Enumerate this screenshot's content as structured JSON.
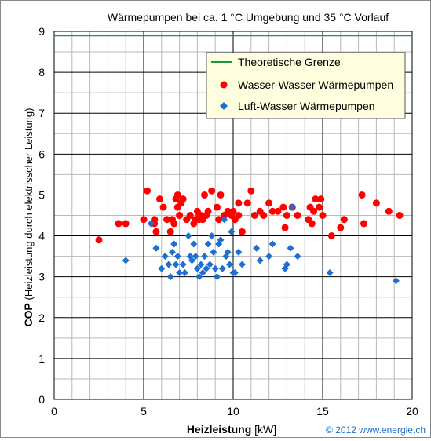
{
  "chart_data": {
    "type": "scatter",
    "title": "Wärmepumpen bei ca. 1 °C Umgebung und 35 °C Vorlauf",
    "xlabel_bold": "Heizleistung",
    "xlabel_unit": " [kW]",
    "ylabel_bold": "COP",
    "ylabel_rest": " (Heizleistung durch elektrisscher Leistung)",
    "xlim": [
      0,
      20
    ],
    "ylim": [
      0,
      9
    ],
    "xticks": [
      "0",
      "5",
      "10",
      "15",
      "20"
    ],
    "yticks": [
      "0",
      "1",
      "2",
      "3",
      "4",
      "5",
      "6",
      "7",
      "8",
      "9"
    ],
    "grid": true,
    "legend_position": "top-right",
    "theoretical_limit": {
      "name": "Theoretische Grenze",
      "y": 8.9,
      "color": "#1a9a3a"
    },
    "series": [
      {
        "name": "Wasser-Wasser Wärmepumpen",
        "color": "#ff0000",
        "marker": "circle",
        "points": [
          [
            2.5,
            3.9
          ],
          [
            3.6,
            4.3
          ],
          [
            4.0,
            4.3
          ],
          [
            5.0,
            4.4
          ],
          [
            5.2,
            5.1
          ],
          [
            5.6,
            4.4
          ],
          [
            5.6,
            4.3
          ],
          [
            5.7,
            4.1
          ],
          [
            5.9,
            4.9
          ],
          [
            6.1,
            4.7
          ],
          [
            6.3,
            4.4
          ],
          [
            6.5,
            4.1
          ],
          [
            6.6,
            4.4
          ],
          [
            6.7,
            4.3
          ],
          [
            6.8,
            4.9
          ],
          [
            6.9,
            4.7
          ],
          [
            6.9,
            5.0
          ],
          [
            7.0,
            4.5
          ],
          [
            7.1,
            4.8
          ],
          [
            7.2,
            4.9
          ],
          [
            7.4,
            4.4
          ],
          [
            7.6,
            4.5
          ],
          [
            7.8,
            4.3
          ],
          [
            7.9,
            4.4
          ],
          [
            8.0,
            4.6
          ],
          [
            8.1,
            4.5
          ],
          [
            8.1,
            4.4
          ],
          [
            8.2,
            4.5
          ],
          [
            8.3,
            4.4
          ],
          [
            8.4,
            5.0
          ],
          [
            8.5,
            4.5
          ],
          [
            8.6,
            4.6
          ],
          [
            8.8,
            5.1
          ],
          [
            9.1,
            4.7
          ],
          [
            9.2,
            4.4
          ],
          [
            9.3,
            5.0
          ],
          [
            9.5,
            4.5
          ],
          [
            9.7,
            4.6
          ],
          [
            9.9,
            4.5
          ],
          [
            10.0,
            4.6
          ],
          [
            10.1,
            4.4
          ],
          [
            10.3,
            4.8
          ],
          [
            10.3,
            4.5
          ],
          [
            10.5,
            4.1
          ],
          [
            10.8,
            4.8
          ],
          [
            11.0,
            5.1
          ],
          [
            11.2,
            4.5
          ],
          [
            11.5,
            4.6
          ],
          [
            11.7,
            4.5
          ],
          [
            12.0,
            4.8
          ],
          [
            12.2,
            4.6
          ],
          [
            12.5,
            4.6
          ],
          [
            12.8,
            4.7
          ],
          [
            12.9,
            4.2
          ],
          [
            13.0,
            4.5
          ],
          [
            13.3,
            4.7
          ],
          [
            13.6,
            4.5
          ],
          [
            14.2,
            4.4
          ],
          [
            14.3,
            4.7
          ],
          [
            14.4,
            4.3
          ],
          [
            14.5,
            4.6
          ],
          [
            14.6,
            4.9
          ],
          [
            14.8,
            4.7
          ],
          [
            14.9,
            4.9
          ],
          [
            15.0,
            4.5
          ],
          [
            15.5,
            4.0
          ],
          [
            16.0,
            4.2
          ],
          [
            16.2,
            4.4
          ],
          [
            17.2,
            5.0
          ],
          [
            17.3,
            4.3
          ],
          [
            18.0,
            4.8
          ],
          [
            18.7,
            4.6
          ],
          [
            19.3,
            4.5
          ]
        ]
      },
      {
        "name": "Luft-Wasser Wärmepumpen",
        "color": "#1f6fd0",
        "marker": "diamond",
        "points": [
          [
            4.0,
            3.4
          ],
          [
            5.4,
            4.3
          ],
          [
            5.7,
            3.7
          ],
          [
            6.0,
            3.2
          ],
          [
            6.2,
            3.5
          ],
          [
            6.4,
            3.3
          ],
          [
            6.5,
            3.0
          ],
          [
            6.6,
            3.6
          ],
          [
            6.7,
            3.8
          ],
          [
            6.8,
            3.3
          ],
          [
            6.9,
            3.5
          ],
          [
            7.0,
            3.1
          ],
          [
            7.2,
            3.3
          ],
          [
            7.3,
            3.1
          ],
          [
            7.5,
            4.0
          ],
          [
            7.6,
            3.5
          ],
          [
            7.7,
            3.4
          ],
          [
            7.8,
            3.8
          ],
          [
            7.9,
            3.5
          ],
          [
            8.0,
            3.2
          ],
          [
            8.1,
            3.0
          ],
          [
            8.2,
            3.3
          ],
          [
            8.3,
            3.1
          ],
          [
            8.4,
            3.5
          ],
          [
            8.5,
            3.2
          ],
          [
            8.6,
            3.8
          ],
          [
            8.7,
            3.3
          ],
          [
            8.8,
            4.0
          ],
          [
            8.9,
            3.6
          ],
          [
            9.0,
            3.2
          ],
          [
            9.1,
            3.0
          ],
          [
            9.2,
            3.8
          ],
          [
            9.3,
            3.9
          ],
          [
            9.4,
            3.2
          ],
          [
            9.5,
            4.4
          ],
          [
            9.6,
            3.5
          ],
          [
            9.7,
            3.6
          ],
          [
            9.8,
            3.3
          ],
          [
            9.9,
            4.1
          ],
          [
            10.0,
            3.1
          ],
          [
            10.1,
            3.1
          ],
          [
            10.3,
            3.6
          ],
          [
            10.5,
            3.3
          ],
          [
            11.3,
            3.7
          ],
          [
            11.5,
            3.4
          ],
          [
            12.0,
            3.5
          ],
          [
            12.2,
            3.8
          ],
          [
            12.9,
            3.2
          ],
          [
            13.0,
            3.3
          ],
          [
            13.2,
            3.7
          ],
          [
            13.3,
            4.7
          ],
          [
            13.6,
            3.5
          ],
          [
            15.4,
            3.1
          ],
          [
            19.1,
            2.9
          ]
        ]
      }
    ]
  },
  "footer": {
    "copyright": "© 2012 www.energie.ch"
  }
}
